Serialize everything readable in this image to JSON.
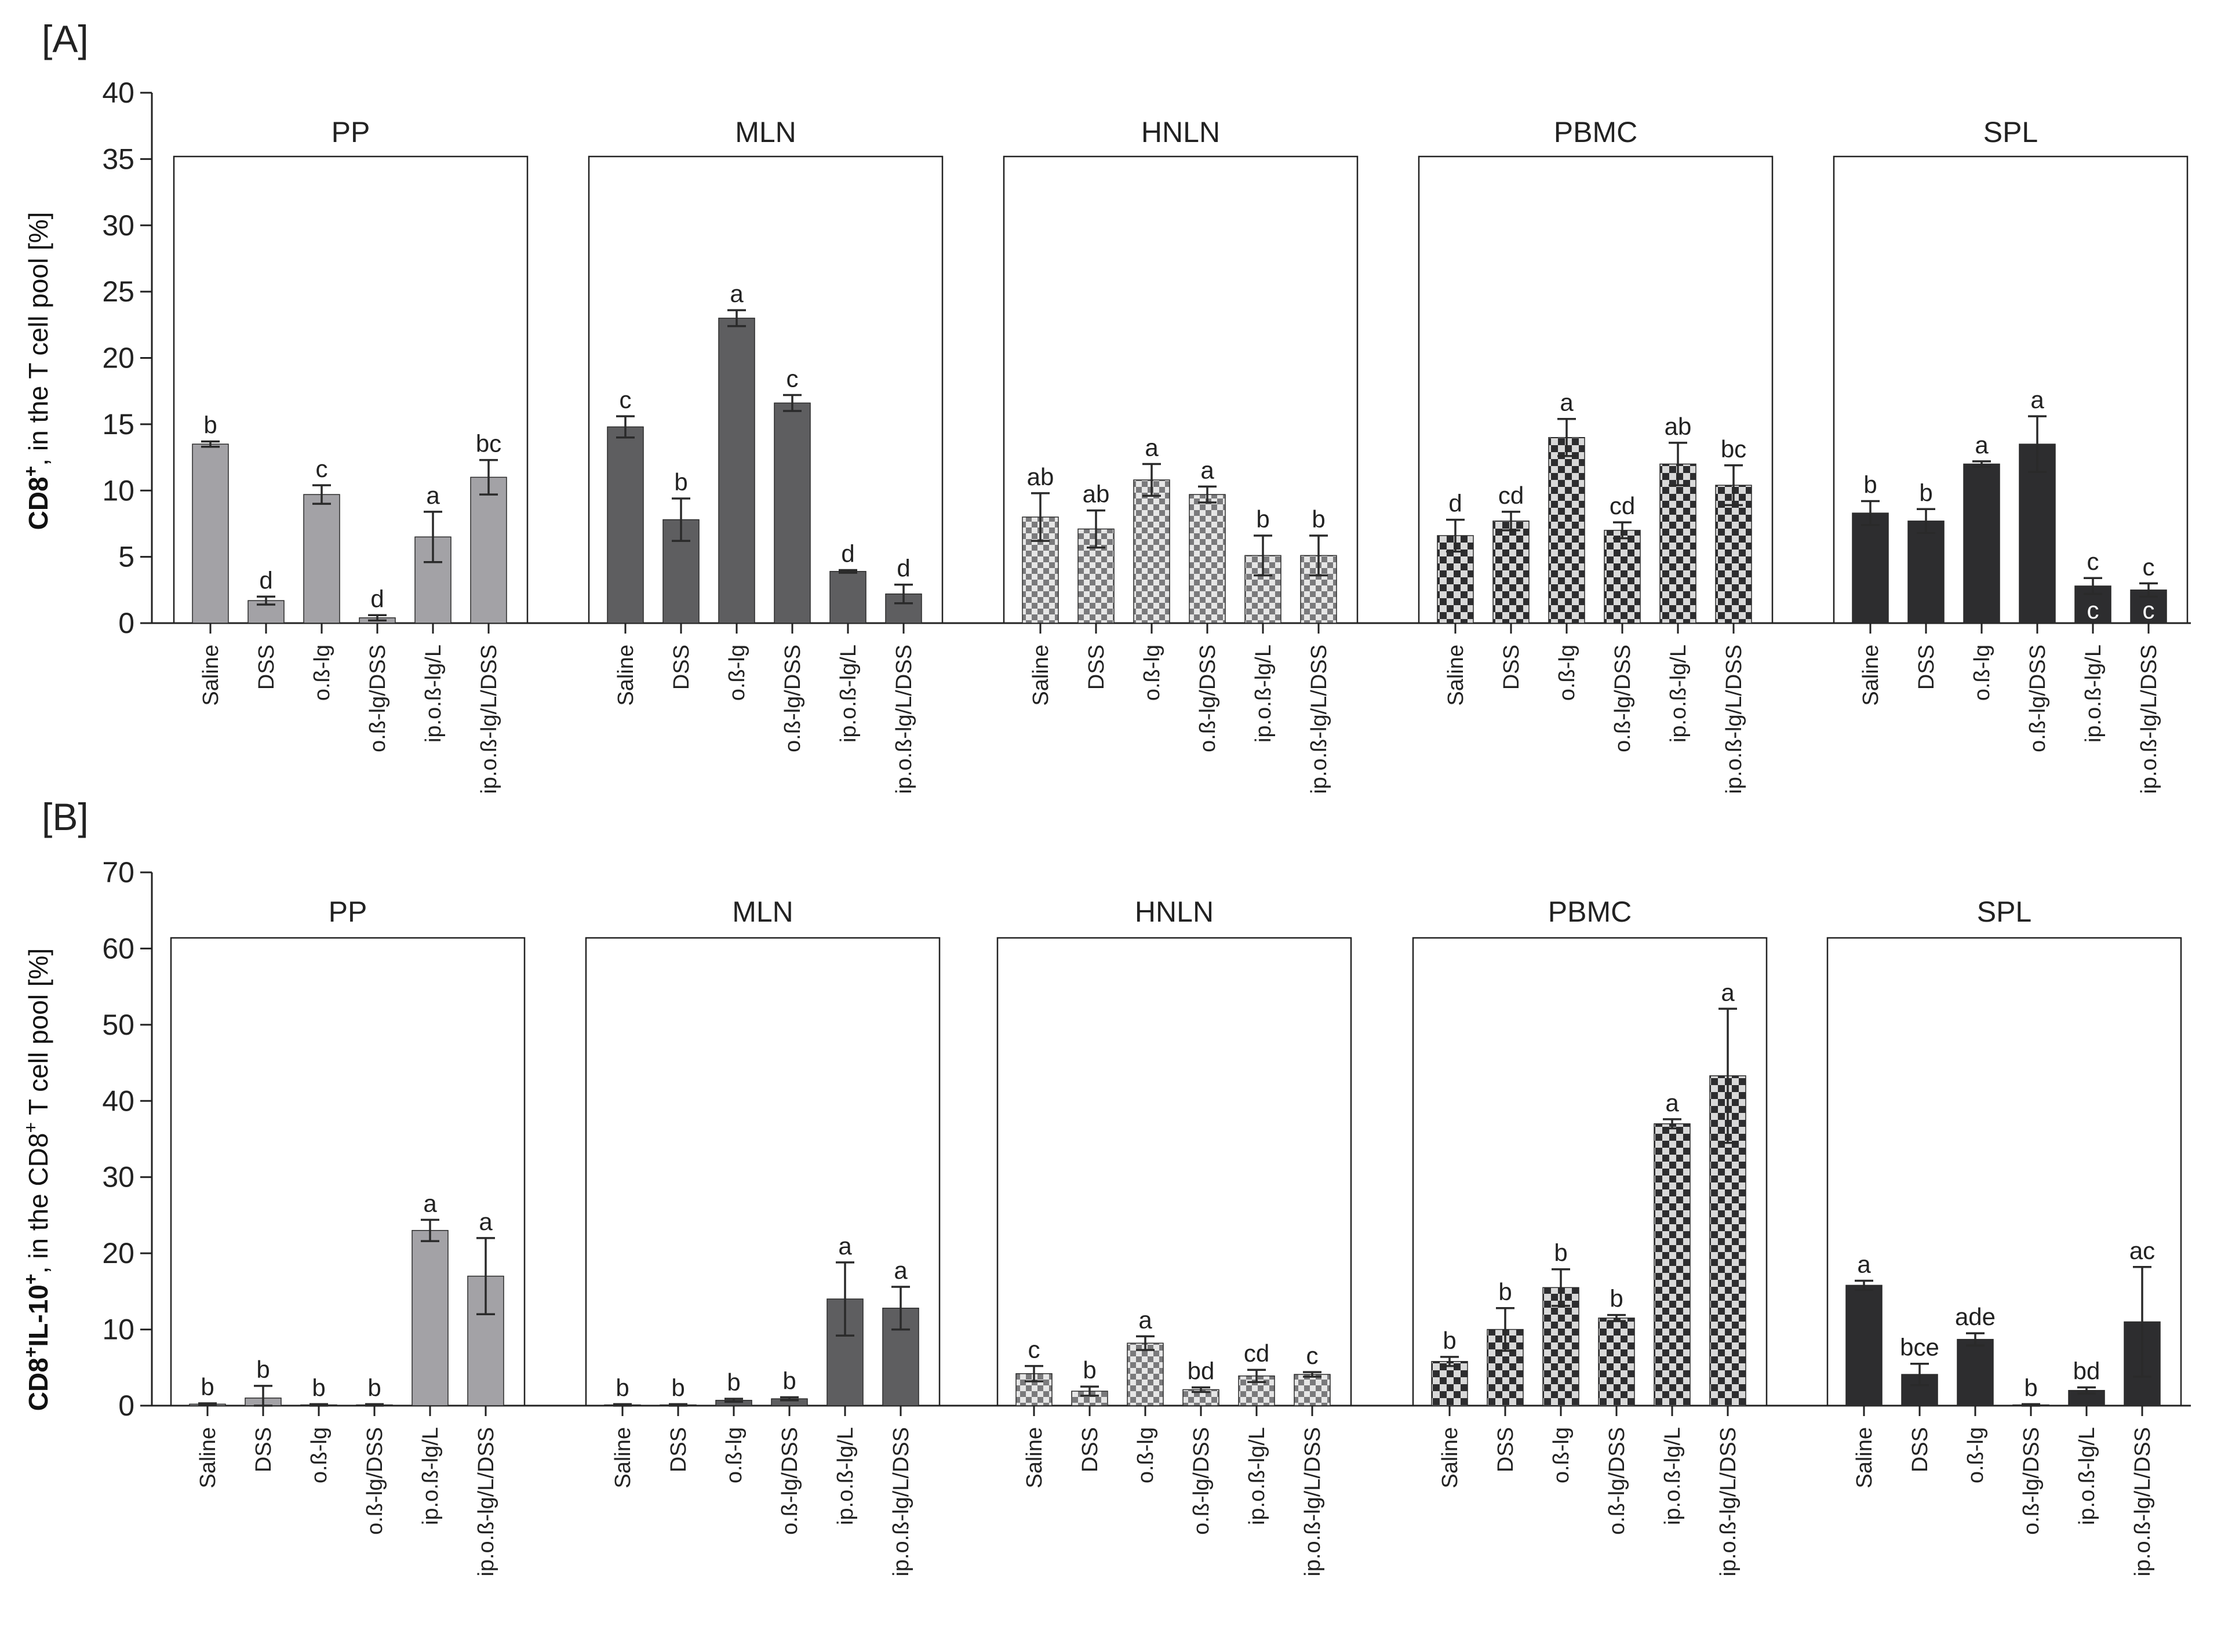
{
  "colors": {
    "PP": "#a3a2a6",
    "MLN": "#5e5e60",
    "HNLN": "#e3e3e3",
    "PBMC": "#2d2d2f",
    "SPL": "#2d2d2f",
    "axis": "#222222"
  },
  "categories": [
    "Saline",
    "DSS",
    "o.ß-lg",
    "o.ß-lg/DSS",
    "ip.o.ß-lg/L",
    "ip.o.ß-lg/L/DSS"
  ],
  "chart_data": [
    {
      "type": "bar",
      "panel_label": "[A]",
      "ylabel_bold": "CD8",
      "ylabel_sup": "+",
      "ylabel_rest": ", in the T cell pool [%]",
      "ylim": [
        0,
        40
      ],
      "yticks": [
        "0",
        "5",
        "10",
        "15",
        "20",
        "25",
        "30",
        "35",
        "40"
      ],
      "groups": [
        {
          "name": "PP",
          "pattern": "solid",
          "values": [
            13.5,
            1.7,
            9.7,
            0.4,
            6.5,
            11.0
          ],
          "errors": [
            0.2,
            0.3,
            0.7,
            0.2,
            1.9,
            1.3
          ],
          "letters": [
            "b",
            "d",
            "c",
            "d",
            "a",
            "bc"
          ],
          "inner": [
            "",
            "",
            "",
            "",
            "",
            ""
          ]
        },
        {
          "name": "MLN",
          "pattern": "solid",
          "values": [
            14.8,
            7.8,
            23.0,
            16.6,
            3.9,
            2.2
          ],
          "errors": [
            0.8,
            1.6,
            0.6,
            0.6,
            0.1,
            0.7
          ],
          "letters": [
            "c",
            "b",
            "a",
            "c",
            "d",
            "d"
          ],
          "inner": [
            "",
            "",
            "",
            "",
            "",
            ""
          ]
        },
        {
          "name": "HNLN",
          "pattern": "check-light",
          "values": [
            8.0,
            7.1,
            10.8,
            9.7,
            5.1,
            5.1
          ],
          "errors": [
            1.8,
            1.4,
            1.2,
            0.6,
            1.5,
            1.5
          ],
          "letters": [
            "ab",
            "ab",
            "a",
            "a",
            "b",
            "b"
          ],
          "inner": [
            "",
            "",
            "",
            "",
            "",
            ""
          ]
        },
        {
          "name": "PBMC",
          "pattern": "check-dark",
          "values": [
            6.6,
            7.7,
            14.0,
            7.0,
            12.0,
            10.4
          ],
          "errors": [
            1.2,
            0.7,
            1.4,
            0.6,
            1.6,
            1.5
          ],
          "letters": [
            "d",
            "cd",
            "a",
            "cd",
            "ab",
            "bc"
          ],
          "inner": [
            "",
            "",
            "",
            "",
            "",
            ""
          ]
        },
        {
          "name": "SPL",
          "pattern": "solid",
          "values": [
            8.3,
            7.7,
            12.0,
            13.5,
            2.8,
            2.5
          ],
          "errors": [
            0.9,
            0.9,
            0.2,
            2.1,
            0.6,
            0.5
          ],
          "letters": [
            "b",
            "b",
            "a",
            "a",
            "c",
            "c"
          ],
          "inner": [
            "",
            "",
            "",
            "",
            "c",
            "c"
          ]
        }
      ]
    },
    {
      "type": "bar",
      "panel_label": "[B]",
      "ylabel_bold": "CD8",
      "ylabel_sup": "+",
      "ylabel_bold2": "IL-10",
      "ylabel_sup2": "+",
      "ylabel_rest": ", in the CD8",
      "ylabel_sup3": "+",
      "ylabel_rest2": " T cell pool [%]",
      "ylim": [
        0,
        70
      ],
      "yticks": [
        "0",
        "10",
        "20",
        "30",
        "40",
        "50",
        "60",
        "70"
      ],
      "groups": [
        {
          "name": "PP",
          "pattern": "solid",
          "values": [
            0.2,
            1.0,
            0.1,
            0.1,
            23.0,
            17.0
          ],
          "errors": [
            0.1,
            1.6,
            0.1,
            0.1,
            1.4,
            5.0
          ],
          "letters": [
            "b",
            "b",
            "b",
            "b",
            "a",
            "a"
          ],
          "inner": [
            "",
            "",
            "",
            "",
            "",
            ""
          ]
        },
        {
          "name": "MLN",
          "pattern": "solid",
          "values": [
            0.1,
            0.1,
            0.7,
            0.9,
            14.0,
            12.8
          ],
          "errors": [
            0.1,
            0.1,
            0.2,
            0.2,
            4.8,
            2.8
          ],
          "letters": [
            "b",
            "b",
            "b",
            "b",
            "a",
            "a"
          ],
          "inner": [
            "",
            "",
            "",
            "",
            "",
            ""
          ]
        },
        {
          "name": "HNLN",
          "pattern": "check-light",
          "values": [
            4.2,
            1.9,
            8.2,
            2.1,
            3.9,
            4.1
          ],
          "errors": [
            1.0,
            0.6,
            0.9,
            0.3,
            0.8,
            0.3
          ],
          "letters": [
            "c",
            "b",
            "a",
            "bd",
            "cd",
            "c"
          ],
          "inner": [
            "",
            "",
            "",
            "",
            "",
            ""
          ]
        },
        {
          "name": "PBMC",
          "pattern": "check-dark",
          "values": [
            5.8,
            10.0,
            15.5,
            11.5,
            37.0,
            43.3
          ],
          "errors": [
            0.6,
            2.8,
            2.4,
            0.4,
            0.6,
            8.8
          ],
          "letters": [
            "b",
            "b",
            "b",
            "b",
            "a",
            "a"
          ],
          "inner": [
            "",
            "",
            "",
            "",
            "",
            ""
          ]
        },
        {
          "name": "SPL",
          "pattern": "solid",
          "values": [
            15.8,
            4.1,
            8.7,
            0.1,
            2.0,
            11.0
          ],
          "errors": [
            0.6,
            1.4,
            0.8,
            0.1,
            0.4,
            7.2
          ],
          "letters": [
            "a",
            "bce",
            "ade",
            "b",
            "bd",
            "ac"
          ],
          "inner": [
            "",
            "",
            "",
            "",
            "",
            ""
          ]
        }
      ]
    }
  ]
}
